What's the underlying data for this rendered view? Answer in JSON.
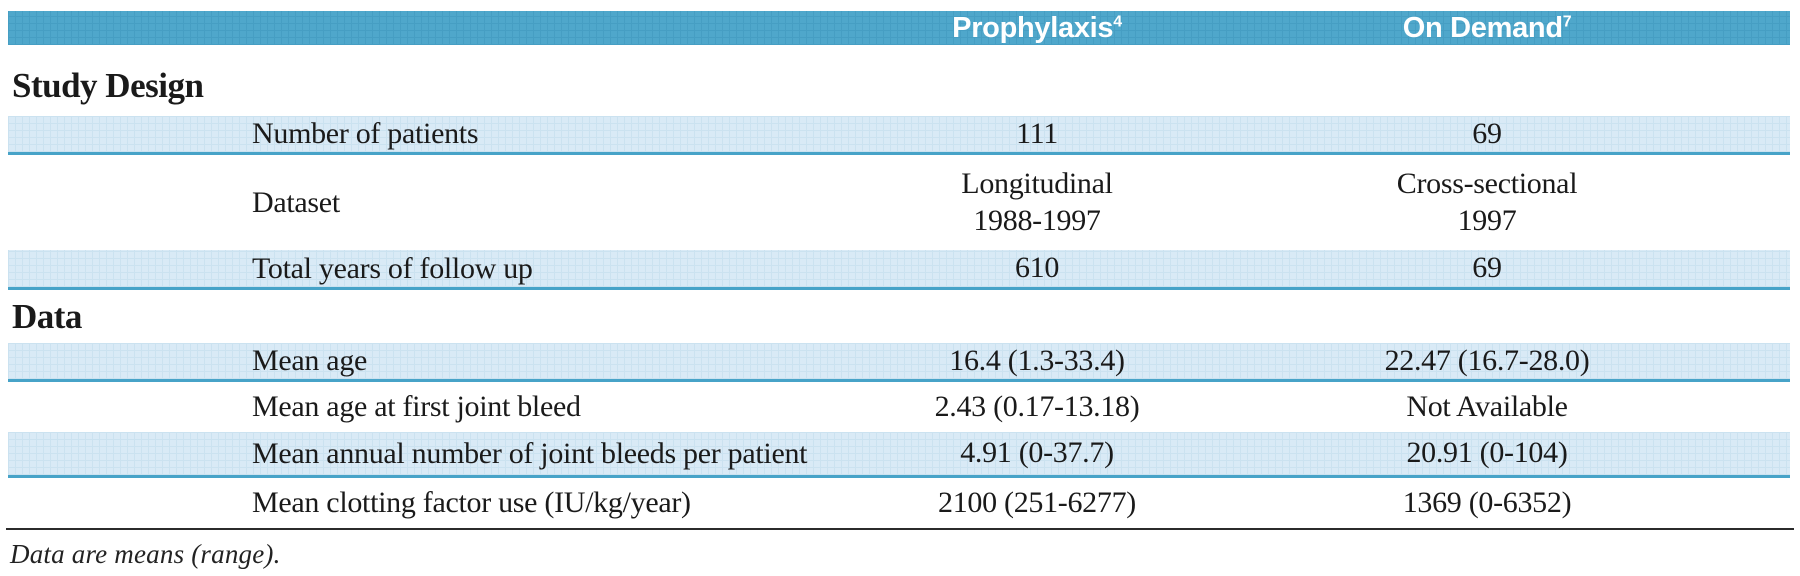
{
  "colors": {
    "header-blue": "#4FA7CB",
    "header-blue-grid": "#469EC3",
    "stripe-blue": "#D9EAF6",
    "stripe-blue-grid": "#CBE2F0",
    "stripe-border": "#47A3C8",
    "rule-dark": "#2B2B2B",
    "text": "#1A1A1A"
  },
  "table": {
    "columns": [
      {
        "label": "Prophylaxis",
        "sup": "4"
      },
      {
        "label": "On Demand",
        "sup": "7"
      }
    ],
    "sections": [
      {
        "title": "Study Design"
      },
      {
        "title": "Data"
      }
    ],
    "rows": [
      {
        "label": "Number of patients",
        "prophylaxis": [
          "111"
        ],
        "on_demand": [
          "69"
        ]
      },
      {
        "label": "Dataset",
        "prophylaxis": [
          "Longitudinal",
          "1988-1997"
        ],
        "on_demand": [
          "Cross-sectional",
          "1997"
        ]
      },
      {
        "label": "Total years of follow up",
        "prophylaxis": [
          "610"
        ],
        "on_demand": [
          "69"
        ]
      },
      {
        "label": "Mean age",
        "prophylaxis": [
          "16.4 (1.3-33.4)"
        ],
        "on_demand": [
          "22.47 (16.7-28.0)"
        ]
      },
      {
        "label": "Mean age at first joint bleed",
        "prophylaxis": [
          "2.43 (0.17-13.18)"
        ],
        "on_demand": [
          "Not Available"
        ]
      },
      {
        "label": "Mean annual number of joint bleeds  per patient",
        "prophylaxis": [
          "4.91 (0-37.7)"
        ],
        "on_demand": [
          "20.91 (0-104)"
        ]
      },
      {
        "label": "Mean clotting factor use (IU/kg/year)",
        "prophylaxis": [
          "2100 (251-6277)"
        ],
        "on_demand": [
          "1369 (0-6352)"
        ]
      }
    ],
    "footnote": "Data are means (range)."
  }
}
